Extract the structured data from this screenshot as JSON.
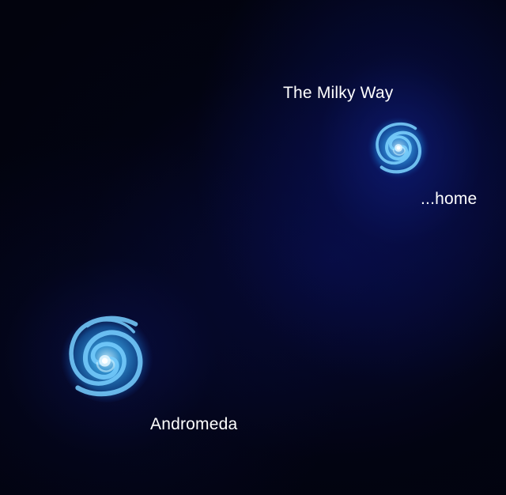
{
  "labels": {
    "milky_way": "The Milky Way",
    "home": "...home",
    "andromeda": "Andromeda"
  },
  "colors": {
    "background": "#02030d",
    "glow": "#1428aa",
    "galaxy_arm": "#3fb8ff",
    "galaxy_core": "#ffffff",
    "text": "#ffffff"
  }
}
